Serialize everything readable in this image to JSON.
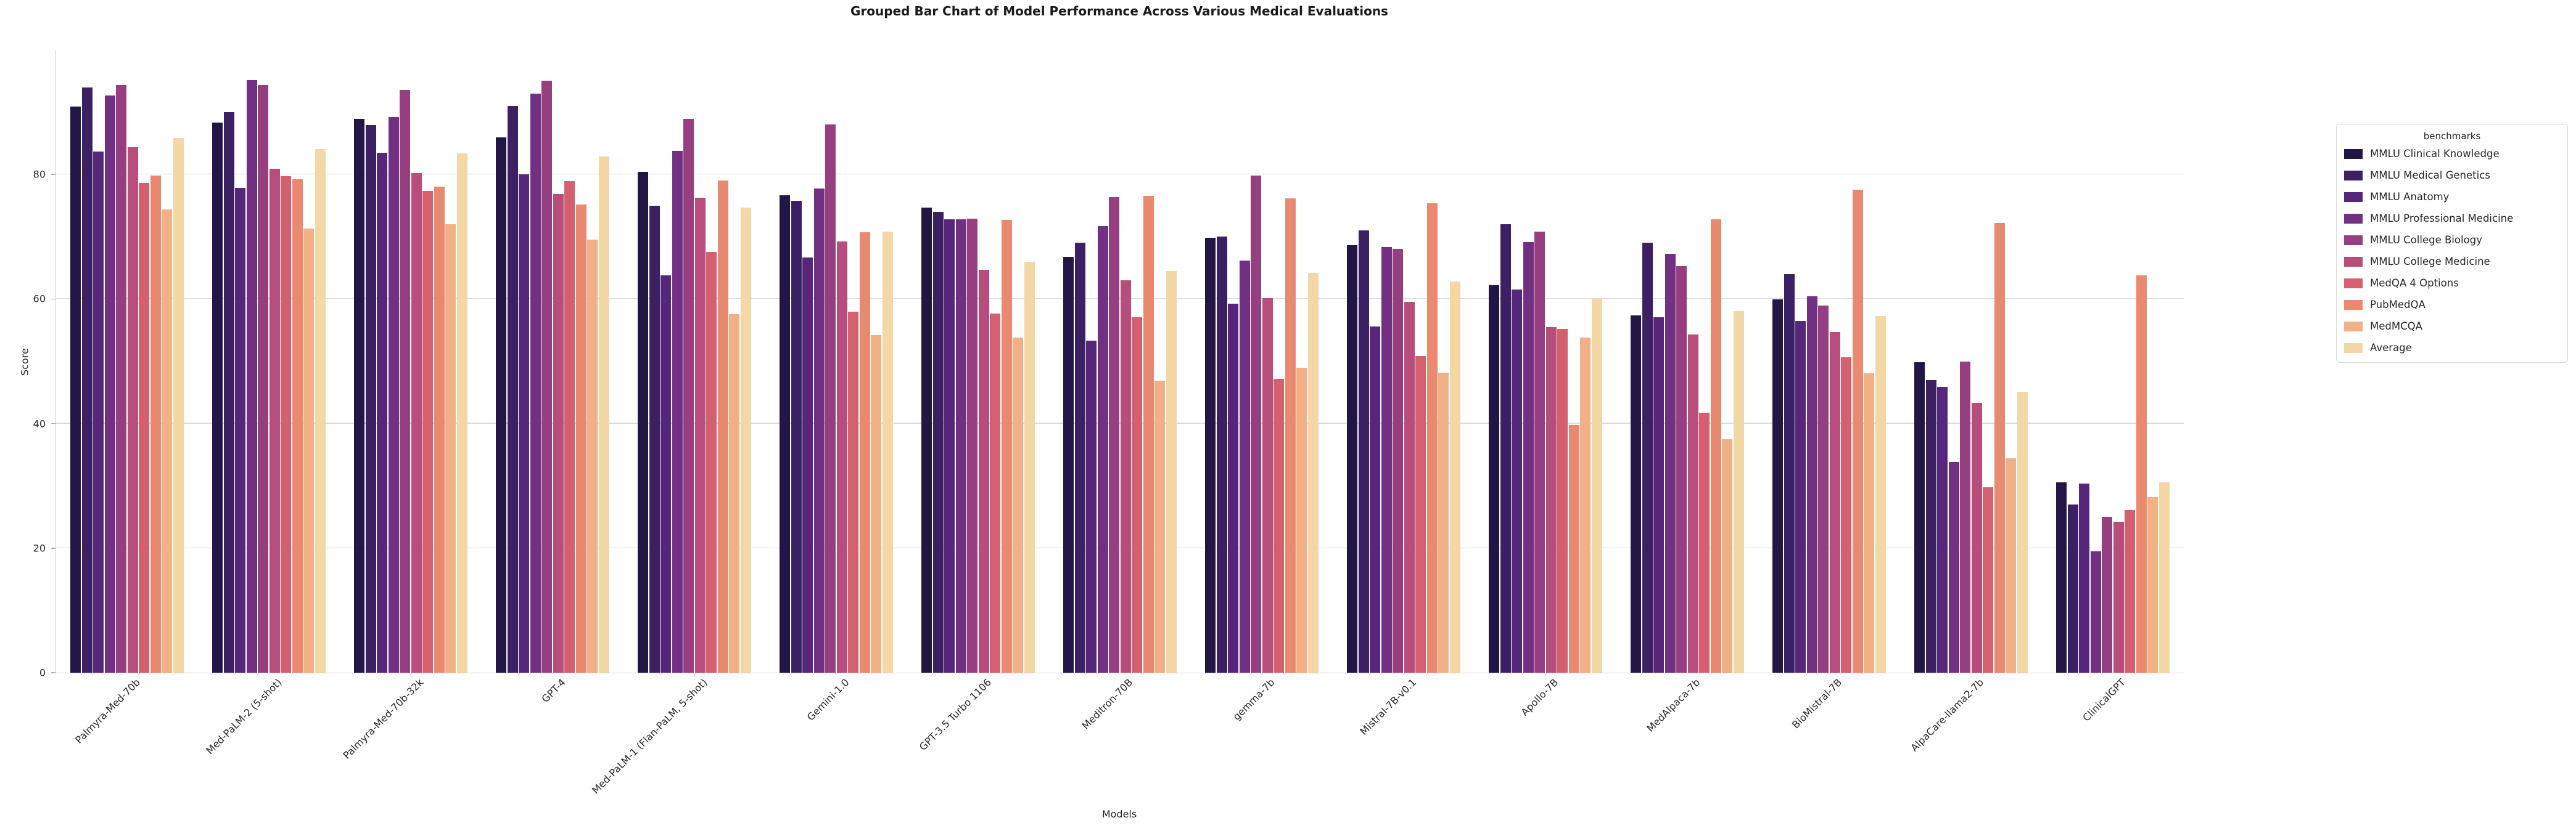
{
  "chart_data": {
    "type": "bar",
    "title": "Grouped Bar Chart of Model Performance Across Various Medical Evaluations",
    "xlabel": "Models",
    "ylabel": "Score",
    "ylim": [
      0,
      100
    ],
    "yticks": [
      0,
      20,
      40,
      60,
      80
    ],
    "grid": true,
    "legend_title": "benchmarks",
    "legend_position": "right",
    "categories": [
      "Palmyra-Med-70b",
      "Med-PaLM-2 (5-shot)",
      "Palmyra-Med-70b-32k",
      "GPT-4",
      "Med-PaLM-1 (Flan-PaLM, 5-shot)",
      "Gemini-1.0",
      "GPT-3.5 Turbo 1106",
      "Meditron-70B",
      "gemma-7b",
      "Mistral-7B-v0.1",
      "Apollo-7B",
      "MedAlpaca-7b",
      "BioMistral-7B",
      "AlpaCare-llama2-7b",
      "ClinicalGPT"
    ],
    "series": [
      {
        "name": "MMLU Clinical Knowledge",
        "color": "#211645",
        "values": [
          90.9,
          88.3,
          88.9,
          86.0,
          80.4,
          76.7,
          74.71,
          66.79,
          69.81,
          68.68,
          62.26,
          57.36,
          59.9,
          49.81,
          30.56
        ]
      },
      {
        "name": "MMLU Medical Genetics",
        "color": "#3b2064",
        "values": [
          94.0,
          90.0,
          87.9,
          91.0,
          75.0,
          75.8,
          74.0,
          69.0,
          70.0,
          71.0,
          72.0,
          69.0,
          64.0,
          47.0,
          27.0
        ]
      },
      {
        "name": "MMLU Anatomy",
        "color": "#552679",
        "values": [
          83.7,
          77.8,
          83.5,
          80.0,
          63.8,
          66.7,
          72.79,
          53.33,
          59.26,
          55.56,
          61.48,
          57.04,
          56.5,
          45.92,
          30.37
        ]
      },
      {
        "name": "MMLU Professional Medicine",
        "color": "#713081",
        "values": [
          92.7,
          95.2,
          89.2,
          93.0,
          83.8,
          77.7,
          72.79,
          71.69,
          66.18,
          68.38,
          69.12,
          67.28,
          60.4,
          33.82,
          19.48
        ]
      },
      {
        "name": "MMLU College Biology",
        "color": "#953f80",
        "values": [
          94.4,
          94.4,
          93.6,
          95.1,
          88.9,
          88.0,
          72.91,
          76.38,
          79.86,
          68.06,
          70.83,
          65.28,
          59.0,
          50.0,
          25.0
        ]
      },
      {
        "name": "MMLU College Medicine",
        "color": "#b64d7b",
        "values": [
          84.4,
          80.9,
          80.2,
          76.9,
          76.3,
          69.2,
          64.73,
          63.0,
          60.12,
          59.54,
          55.49,
          54.34,
          54.7,
          43.35,
          24.27
        ]
      },
      {
        "name": "MedQA 4 Options",
        "color": "#d4606f",
        "values": [
          78.6,
          79.7,
          77.4,
          78.9,
          67.6,
          58.0,
          57.71,
          57.1,
          47.21,
          50.82,
          55.22,
          41.71,
          50.6,
          29.77,
          26.08
        ]
      },
      {
        "name": "PubMedQA",
        "color": "#e98a70",
        "values": [
          79.8,
          79.2,
          78.0,
          75.2,
          79.0,
          70.7,
          72.66,
          76.6,
          76.2,
          75.4,
          39.8,
          72.8,
          77.5,
          72.2,
          63.8
        ]
      },
      {
        "name": "MedMCQA",
        "color": "#f1b085",
        "values": [
          74.4,
          71.3,
          72.0,
          69.5,
          57.6,
          54.2,
          53.79,
          46.85,
          48.96,
          48.2,
          53.77,
          37.51,
          48.1,
          34.42,
          28.18
        ]
      },
      {
        "name": "Average",
        "color": "#f3d7a4",
        "values": [
          85.9,
          84.1,
          83.4,
          82.9,
          74.7,
          70.8,
          66.0,
          64.52,
          64.18,
          62.85,
          60.0,
          58.03,
          57.3,
          45.14,
          30.52
        ]
      }
    ]
  }
}
